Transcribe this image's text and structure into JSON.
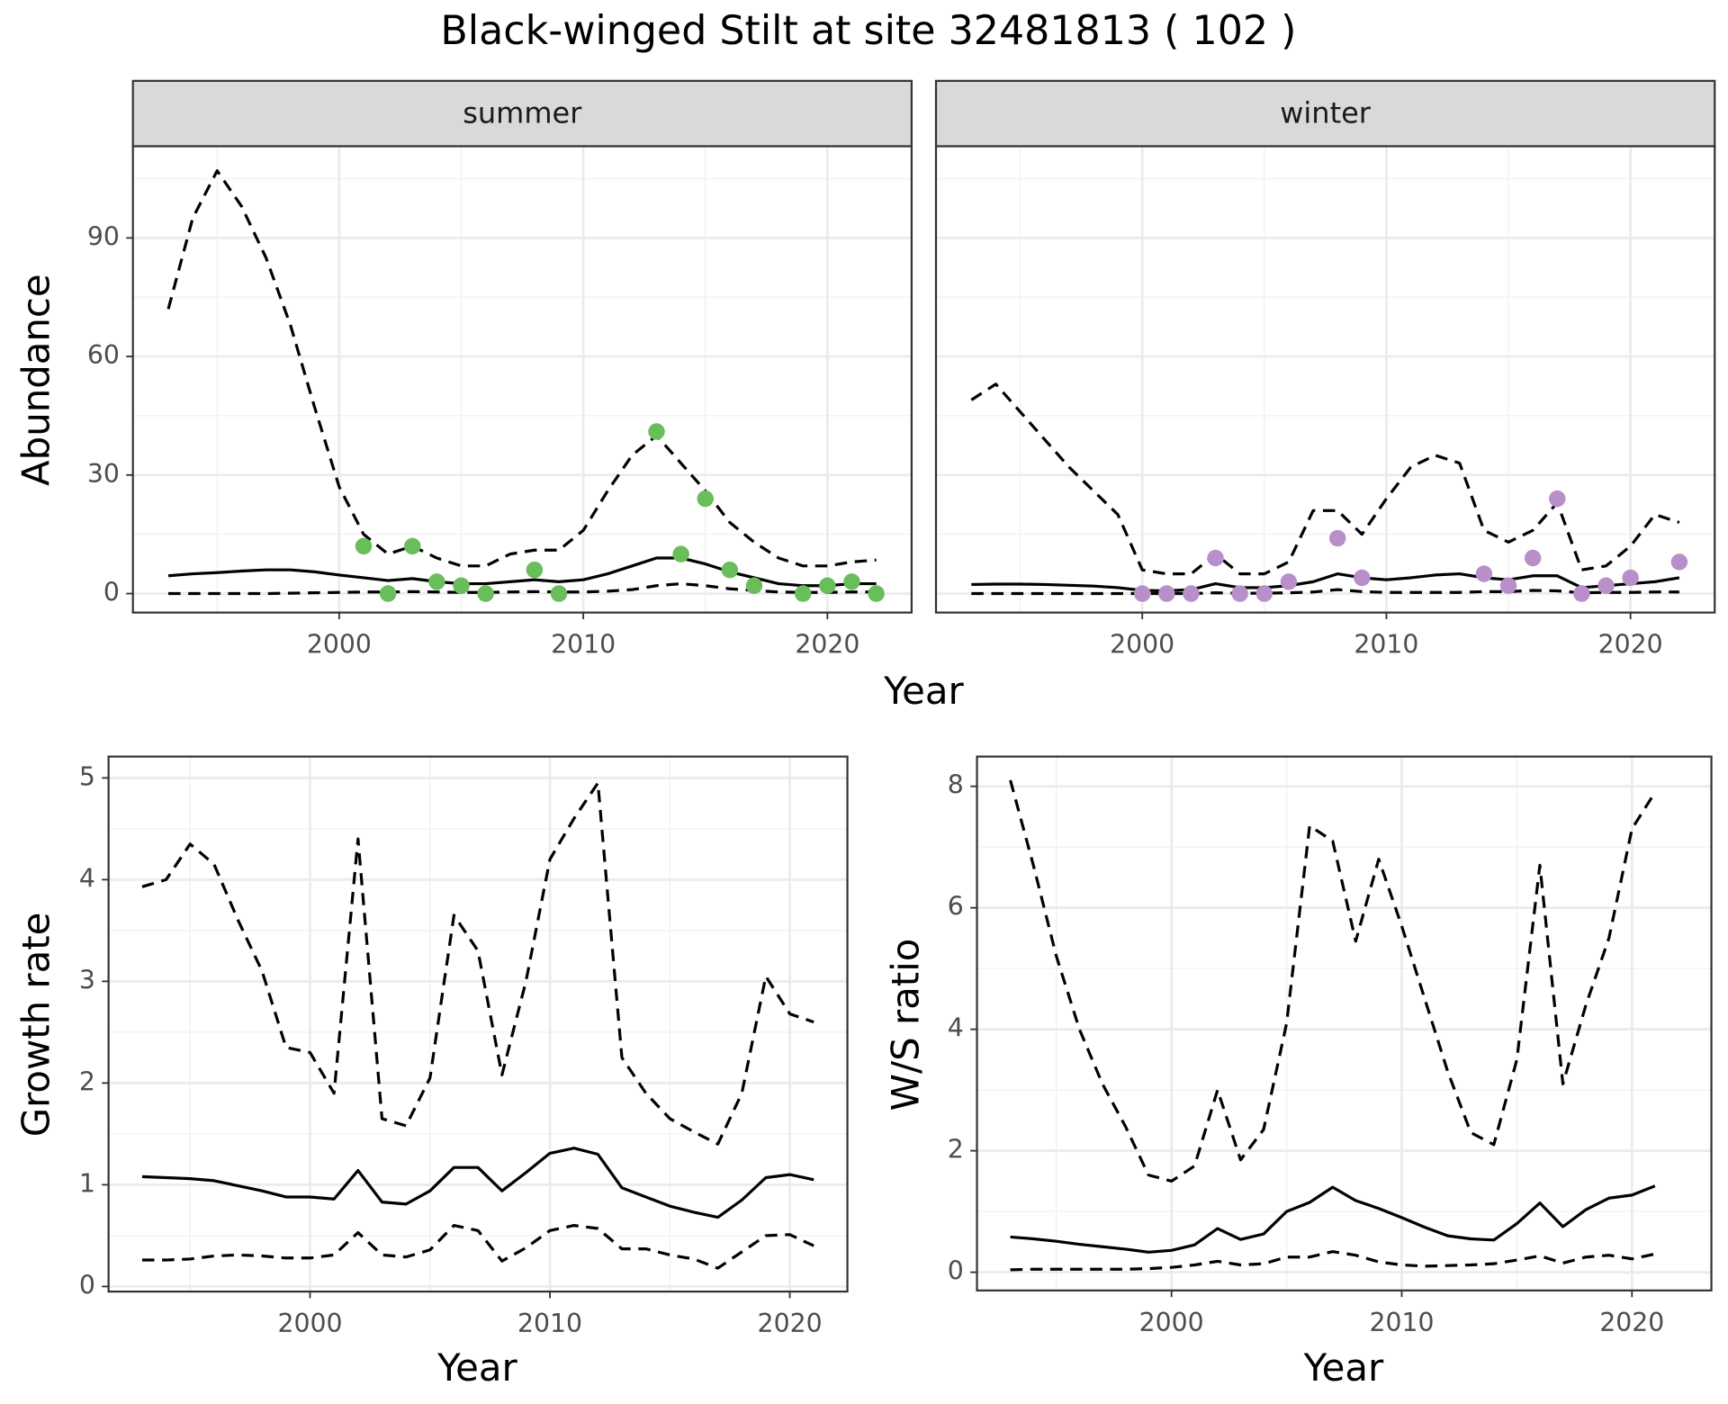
{
  "title": "Black-winged Stilt at site 32481813 ( 102 )",
  "chart_data": [
    {
      "type": "line",
      "strip": "summer",
      "ylabel": "Abundance",
      "xlabel": "Year",
      "grid": true,
      "xlim": [
        1991.55,
        2023.45
      ],
      "ylim": [
        -4.8,
        113.2
      ],
      "xticks": [
        2000,
        2010,
        2020
      ],
      "yticks": [
        0,
        30,
        60,
        90
      ],
      "x": [
        1993,
        1994,
        1995,
        1996,
        1997,
        1998,
        1999,
        2000,
        2001,
        2002,
        2003,
        2004,
        2005,
        2006,
        2007,
        2008,
        2009,
        2010,
        2011,
        2012,
        2013,
        2014,
        2015,
        2016,
        2017,
        2018,
        2019,
        2020,
        2021,
        2022
      ],
      "series": [
        {
          "style": "dashed",
          "color": "#000000",
          "values": [
            72,
            95,
            107,
            98,
            85,
            68,
            47,
            27,
            15,
            10,
            12,
            9,
            7,
            7,
            10,
            11,
            11,
            16,
            26,
            35,
            40,
            33,
            26,
            18,
            13,
            9,
            7,
            7,
            8,
            8.5
          ]
        },
        {
          "style": "solid",
          "color": "#000000",
          "values": [
            4.5,
            5,
            5.3,
            5.7,
            6,
            6,
            5.5,
            4.7,
            4,
            3.3,
            3.8,
            3,
            2.5,
            2.5,
            3,
            3.5,
            3,
            3.5,
            5,
            7,
            9,
            9,
            7.5,
            5.5,
            4,
            2.5,
            2,
            2,
            2.5,
            2.5
          ]
        },
        {
          "style": "dashed",
          "color": "#000000",
          "values": [
            0,
            0,
            0,
            0,
            0,
            0.1,
            0.2,
            0.3,
            0.4,
            0.4,
            0.5,
            0.4,
            0.3,
            0.3,
            0.4,
            0.5,
            0.4,
            0.4,
            0.6,
            1,
            2,
            2.5,
            2,
            1.2,
            0.8,
            0.4,
            0.3,
            0.3,
            0.4,
            0.4
          ]
        },
        {
          "type": "scatter",
          "color": "#6abd5b",
          "x": [
            2001,
            2002,
            2003,
            2004,
            2005,
            2006,
            2008,
            2009,
            2013,
            2014,
            2015,
            2016,
            2017,
            2019,
            2020,
            2021,
            2022
          ],
          "values": [
            12,
            0,
            12,
            3,
            2,
            0,
            6,
            0,
            41,
            10,
            24,
            6,
            2,
            0,
            2,
            3,
            0
          ]
        }
      ]
    },
    {
      "type": "line",
      "strip": "winter",
      "grid": true,
      "yticklabels": false,
      "xlim": [
        1991.55,
        2023.45
      ],
      "ylim": [
        -4.8,
        113.2
      ],
      "xticks": [
        2000,
        2010,
        2020
      ],
      "yticks": [
        0,
        30,
        60,
        90
      ],
      "x": [
        1993,
        1994,
        1995,
        1996,
        1997,
        1998,
        1999,
        2000,
        2001,
        2002,
        2003,
        2004,
        2005,
        2006,
        2007,
        2008,
        2009,
        2010,
        2011,
        2012,
        2013,
        2014,
        2015,
        2016,
        2017,
        2018,
        2019,
        2020,
        2021,
        2022
      ],
      "series": [
        {
          "style": "dashed",
          "color": "#000000",
          "values": [
            49,
            53,
            46,
            39,
            32,
            26,
            20,
            6,
            5,
            5,
            10,
            5,
            5,
            8,
            21,
            21,
            15,
            24,
            32,
            35,
            33,
            16,
            13,
            16,
            23,
            6,
            7,
            12,
            20,
            18
          ]
        },
        {
          "style": "solid",
          "color": "#000000",
          "values": [
            2.3,
            2.4,
            2.4,
            2.3,
            2.1,
            1.9,
            1.5,
            0.8,
            0.7,
            1,
            2.5,
            1.5,
            1.5,
            2,
            3,
            5,
            4,
            3.5,
            4,
            4.7,
            5,
            4,
            3.5,
            4.5,
            4.5,
            1.5,
            2,
            2.5,
            3,
            4
          ]
        },
        {
          "style": "dashed",
          "color": "#000000",
          "values": [
            0,
            0,
            0,
            0,
            0,
            0,
            0,
            0,
            0,
            0,
            0.2,
            0.1,
            0.1,
            0.2,
            0.4,
            1,
            0.5,
            0.3,
            0.3,
            0.3,
            0.3,
            0.5,
            0.5,
            0.8,
            0.7,
            0.2,
            0.3,
            0.3,
            0.4,
            0.4
          ]
        },
        {
          "type": "scatter",
          "color": "#b98fca",
          "x": [
            2000,
            2001,
            2002,
            2003,
            2004,
            2005,
            2006,
            2008,
            2009,
            2014,
            2015,
            2016,
            2017,
            2018,
            2019,
            2020,
            2022
          ],
          "values": [
            0,
            0,
            0,
            9,
            0,
            0,
            3,
            14,
            4,
            5,
            2,
            9,
            24,
            0,
            2,
            4,
            8
          ]
        }
      ]
    },
    {
      "type": "line",
      "ylabel": "Growth rate",
      "xlabel": "Year",
      "grid": true,
      "xlim": [
        1991.6,
        2022.4
      ],
      "ylim": [
        -0.05,
        5.21
      ],
      "xticks": [
        2000,
        2010,
        2020
      ],
      "yticks": [
        0,
        1,
        2,
        3,
        4,
        5
      ],
      "x": [
        1993,
        1994,
        1995,
        1996,
        1997,
        1998,
        1999,
        2000,
        2001,
        2002,
        2003,
        2004,
        2005,
        2006,
        2007,
        2008,
        2009,
        2010,
        2011,
        2012,
        2013,
        2014,
        2015,
        2016,
        2017,
        2018,
        2019,
        2020,
        2021
      ],
      "series": [
        {
          "style": "dashed",
          "color": "#000000",
          "values": [
            3.93,
            4.0,
            4.35,
            4.15,
            3.6,
            3.1,
            2.35,
            2.3,
            1.9,
            4.4,
            1.65,
            1.58,
            2.05,
            3.65,
            3.3,
            2.08,
            3.0,
            4.2,
            4.6,
            4.95,
            2.25,
            1.9,
            1.65,
            1.52,
            1.4,
            1.9,
            3.05,
            2.68,
            2.6
          ]
        },
        {
          "style": "solid",
          "color": "#000000",
          "values": [
            1.08,
            1.07,
            1.06,
            1.04,
            0.99,
            0.94,
            0.88,
            0.88,
            0.86,
            1.14,
            0.83,
            0.81,
            0.94,
            1.17,
            1.17,
            0.94,
            1.12,
            1.31,
            1.36,
            1.3,
            0.97,
            0.88,
            0.79,
            0.73,
            0.68,
            0.85,
            1.07,
            1.1,
            1.05
          ]
        },
        {
          "style": "dashed",
          "color": "#000000",
          "values": [
            0.26,
            0.26,
            0.27,
            0.3,
            0.31,
            0.3,
            0.28,
            0.28,
            0.31,
            0.53,
            0.31,
            0.29,
            0.36,
            0.6,
            0.55,
            0.25,
            0.38,
            0.55,
            0.6,
            0.57,
            0.37,
            0.37,
            0.31,
            0.27,
            0.18,
            0.34,
            0.5,
            0.51,
            0.4
          ]
        }
      ]
    },
    {
      "type": "line",
      "ylabel": "W/S ratio",
      "xlabel": "Year",
      "grid": true,
      "xlim": [
        1991.55,
        2023.45
      ],
      "ylim": [
        -0.3,
        8.49
      ],
      "xticks": [
        2000,
        2010,
        2020
      ],
      "yticks": [
        0,
        2,
        4,
        6,
        8
      ],
      "x": [
        1993,
        1994,
        1995,
        1996,
        1997,
        1998,
        1999,
        2000,
        2001,
        2002,
        2003,
        2004,
        2005,
        2006,
        2007,
        2008,
        2009,
        2010,
        2011,
        2012,
        2013,
        2014,
        2015,
        2016,
        2017,
        2018,
        2019,
        2020,
        2021
      ],
      "series": [
        {
          "style": "dashed",
          "color": "#000000",
          "values": [
            8.1,
            6.7,
            5.2,
            4.0,
            3.1,
            2.4,
            1.6,
            1.5,
            1.75,
            3.0,
            1.85,
            2.35,
            4.1,
            7.35,
            7.1,
            5.45,
            6.8,
            5.7,
            4.5,
            3.3,
            2.3,
            2.1,
            3.5,
            6.7,
            3.1,
            4.4,
            5.5,
            7.3,
            7.9
          ]
        },
        {
          "style": "solid",
          "color": "#000000",
          "values": [
            0.58,
            0.55,
            0.51,
            0.46,
            0.42,
            0.38,
            0.33,
            0.36,
            0.45,
            0.72,
            0.54,
            0.63,
            1.0,
            1.15,
            1.4,
            1.18,
            1.05,
            0.9,
            0.74,
            0.6,
            0.55,
            0.53,
            0.8,
            1.14,
            0.75,
            1.03,
            1.22,
            1.27,
            1.42
          ]
        },
        {
          "style": "dashed",
          "color": "#000000",
          "values": [
            0.04,
            0.05,
            0.05,
            0.05,
            0.05,
            0.05,
            0.06,
            0.08,
            0.12,
            0.18,
            0.12,
            0.14,
            0.25,
            0.25,
            0.34,
            0.28,
            0.17,
            0.12,
            0.1,
            0.11,
            0.12,
            0.14,
            0.2,
            0.27,
            0.15,
            0.25,
            0.28,
            0.22,
            0.3
          ]
        }
      ]
    }
  ]
}
